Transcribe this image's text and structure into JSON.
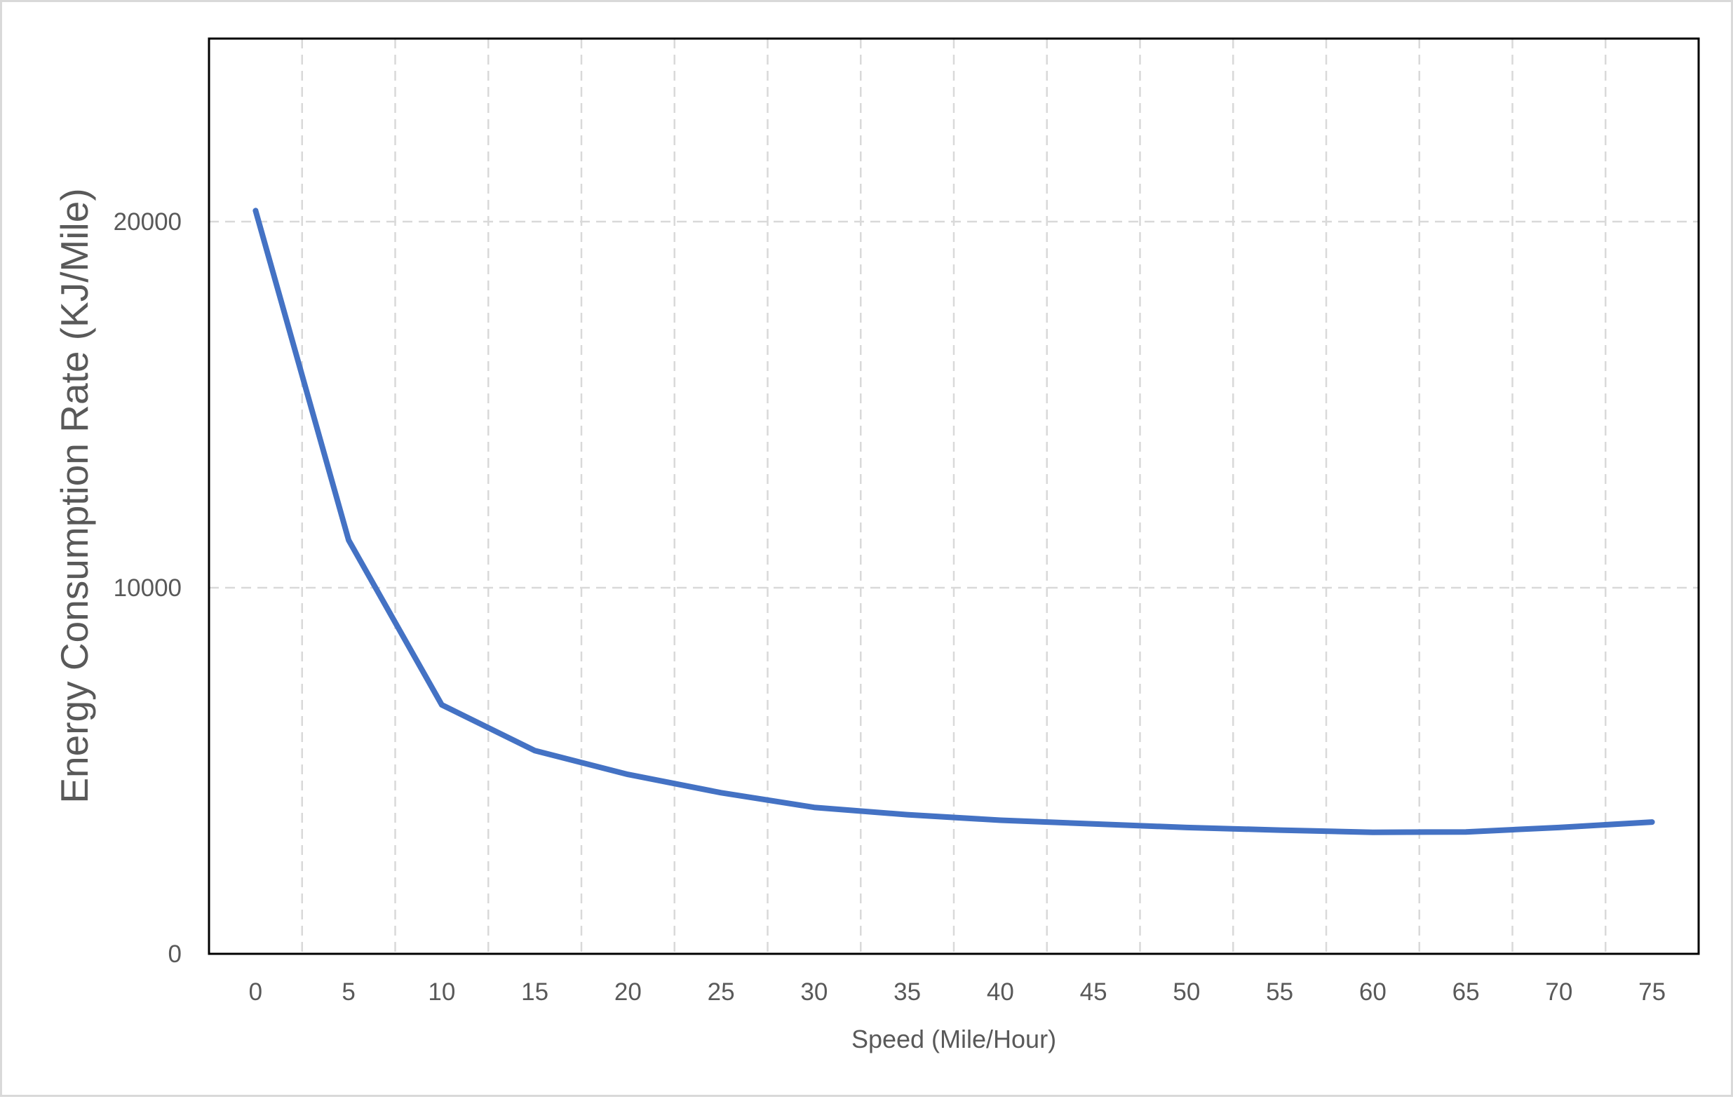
{
  "chart_data": {
    "type": "line",
    "title": "",
    "xlabel": "Speed (Mile/Hour)",
    "ylabel": "Energy Consumption Rate  (KJ/Mile)",
    "x": [
      0,
      5,
      10,
      15,
      20,
      25,
      30,
      35,
      40,
      45,
      50,
      55,
      60,
      65,
      70,
      75
    ],
    "series": [
      {
        "color": "#4472c4",
        "values": [
          20300,
          11300,
          6800,
          5550,
          4900,
          4400,
          4000,
          3800,
          3650,
          3550,
          3450,
          3380,
          3320,
          3330,
          3450,
          3600
        ]
      }
    ],
    "x_ticks": [
      "0",
      "5",
      "10",
      "15",
      "20",
      "25",
      "30",
      "35",
      "40",
      "45",
      "50",
      "55",
      "60",
      "65",
      "70",
      "75"
    ],
    "y_ticks": [
      "0",
      "10000",
      "20000"
    ],
    "y_tick_values": [
      0,
      10000,
      20000
    ],
    "ylim": [
      0,
      25000
    ],
    "grid": "dashed",
    "legend": "none"
  },
  "colors": {
    "line": "#4472c4",
    "grid": "#d9d9d9",
    "axis_text": "#595959",
    "plot_border": "#000000"
  }
}
